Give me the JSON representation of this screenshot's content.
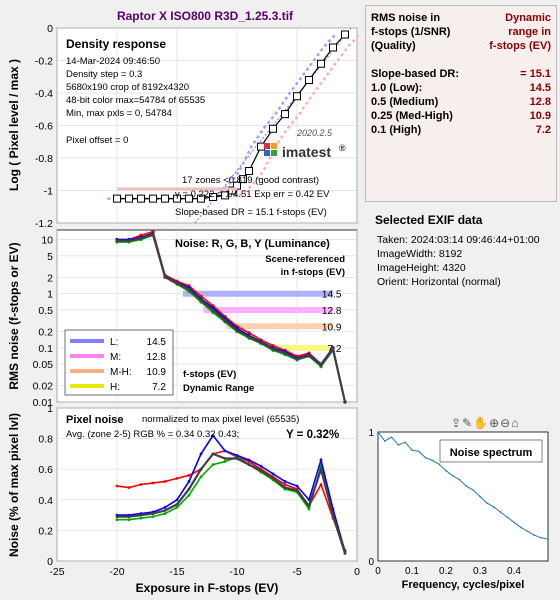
{
  "window_title": "Raptor X ISO800 R3D_1.25.3.tif",
  "density": {
    "title": "Density response",
    "info_lines": [
      "14-Mar-2024 09:46:50",
      "Density step = 0.3",
      "5680x190 crop of 8192x4320",
      "48-bit color  max=54784 of 65535",
      "Min, max pxls = 0, 54784"
    ],
    "pixel_offset": "Pixel offset = 0",
    "version": "2020.2.5",
    "logo_text": "imatest",
    "notes": [
      "17 zones <0.819 (good contrast)",
      "γ = 0.222 = 1/4.51  Exp err = 0.42 EV",
      "Slope-based DR = 15.1 f-stops (EV)"
    ],
    "ylabel": "Log ( Pixel level / max )"
  },
  "noise": {
    "title": "Noise: R, G, B, Y (Luminance)",
    "note": [
      "Scene-referenced",
      "in f-stops (EV)"
    ],
    "ylabel": "RMS noise (f-stops or EV)",
    "dr_title": [
      "f-stops (EV)",
      "Dynamic Range"
    ],
    "legend": [
      {
        "label": "L:",
        "value": "14.5",
        "color": "#8080ff"
      },
      {
        "label": "M:",
        "value": "12.8",
        "color": "#ff80ff"
      },
      {
        "label": "M-H:",
        "value": "10.9",
        "color": "#ffb080"
      },
      {
        "label": "H:",
        "value": "7.2",
        "color": "#e8e800"
      }
    ],
    "band_labels": [
      "14.5",
      "12.8",
      "10.9",
      "7.2"
    ]
  },
  "pixel_noise": {
    "title": "Pixel noise",
    "subtitle": "normalized to max pixel level (65535)",
    "avg": "Avg. (zone 2-5) RGB % = 0.34  0.32  0.43;",
    "y_value": "Y = 0.32%",
    "ylabel": "Noise (% of max pixel lvl)",
    "xlabel": "Exposure in F-stops (EV)"
  },
  "table": {
    "header_left": [
      "RMS noise in",
      "f-stops (1/SNR)",
      "(Quality)"
    ],
    "header_right": [
      "Dynamic",
      "range in",
      "f-stops (EV)"
    ],
    "slope_label": "Slope-based DR:",
    "slope_value": "= 15.1",
    "rows": [
      {
        "label": "1.0   (Low):",
        "value": "14.5"
      },
      {
        "label": "0.5   (Medium)",
        "value": "12.8"
      },
      {
        "label": "0.25 (Med-High)",
        "value": "10.9"
      },
      {
        "label": "0.1   (High)",
        "value": "7.2"
      }
    ]
  },
  "exif": {
    "title": "Selected EXIF data",
    "lines": [
      "Taken: 2024:03:14 09:46:44+01:00",
      "ImageWidth:  8192",
      "ImageHeight:  4320",
      "Orient: Horizontal (normal)"
    ]
  },
  "spectrum": {
    "title": "Noise spectrum",
    "xlabel": "Frequency, cycles/pixel"
  },
  "toolbar_icons": [
    "export-icon",
    "brush-icon",
    "pan-hand-icon",
    "zoom-in-icon",
    "zoom-out-icon",
    "home-icon"
  ],
  "chart_data": [
    {
      "type": "line",
      "title": "Density response",
      "xlabel": "",
      "ylabel": "Log ( Pixel level / max )",
      "xlim": [
        -25,
        0
      ],
      "ylim": [
        -1.2,
        0
      ],
      "x_ticks": [
        -25,
        -20,
        -15,
        -10,
        -5,
        0
      ],
      "y_ticks": [
        -1.2,
        -1,
        -0.8,
        -0.6,
        -0.4,
        -0.2,
        0
      ],
      "grid": true,
      "series": [
        {
          "x": [
            -20,
            -19,
            -18,
            -17,
            -16,
            -15,
            -14,
            -13,
            -12,
            -11,
            -10.4,
            -10,
            -9.5,
            -9,
            -8,
            -7,
            -6,
            -5,
            -4,
            -3,
            -2,
            -1
          ],
          "y": [
            -1.05,
            -1.05,
            -1.05,
            -1.05,
            -1.05,
            -1.05,
            -1.05,
            -1.05,
            -1.04,
            -1.03,
            -1.0,
            -0.97,
            -0.93,
            -0.88,
            -0.73,
            -0.62,
            -0.53,
            -0.42,
            -0.32,
            -0.22,
            -0.12,
            -0.04
          ],
          "color": "#000000"
        }
      ]
    },
    {
      "type": "line",
      "title": "Noise: R, G, B, Y (Luminance)",
      "ylabel": "RMS noise (f-stops or EV)",
      "xlim": [
        -25,
        0
      ],
      "ylim": [
        0.01,
        15
      ],
      "yscale": "log",
      "y_ticks": [
        0.01,
        0.02,
        0.05,
        0.1,
        0.2,
        0.5,
        1,
        2,
        5,
        10
      ],
      "grid": true,
      "series": [
        {
          "x": [
            -20,
            -19,
            -18,
            -17,
            -16,
            -15,
            -14,
            -13,
            -12,
            -11,
            -10,
            -9,
            -8,
            -7,
            -6,
            -5,
            -4,
            -3,
            -2,
            -1
          ],
          "y": [
            10,
            10,
            12,
            14,
            2.2,
            1.7,
            1.4,
            0.9,
            0.6,
            0.38,
            0.25,
            0.19,
            0.14,
            0.11,
            0.09,
            0.07,
            0.08,
            0.05,
            0.1,
            0.01
          ],
          "color": "#ff0000"
        },
        {
          "x": [
            -20,
            -19,
            -18,
            -17,
            -16,
            -15,
            -14,
            -13,
            -12,
            -11,
            -10,
            -9,
            -8,
            -7,
            -6,
            -5,
            -4,
            -3,
            -2,
            -1
          ],
          "y": [
            9,
            9,
            10,
            12,
            2.0,
            1.5,
            1.1,
            0.7,
            0.45,
            0.3,
            0.2,
            0.15,
            0.12,
            0.09,
            0.075,
            0.06,
            0.07,
            0.045,
            0.09,
            0.01
          ],
          "color": "#00aa00"
        },
        {
          "x": [
            -20,
            -19,
            -18,
            -17,
            -16,
            -15,
            -14,
            -13,
            -12,
            -11,
            -10,
            -9,
            -8,
            -7,
            -6,
            -5,
            -4,
            -3,
            -2,
            -1
          ],
          "y": [
            10,
            10,
            11,
            13,
            2.1,
            1.6,
            1.3,
            0.8,
            0.55,
            0.35,
            0.23,
            0.17,
            0.13,
            0.1,
            0.085,
            0.065,
            0.075,
            0.05,
            0.1,
            0.01
          ],
          "color": "#0000ff"
        },
        {
          "x": [
            -20,
            -19,
            -18,
            -17,
            -16,
            -15,
            -14,
            -13,
            -12,
            -11,
            -10,
            -9,
            -8,
            -7,
            -6,
            -5,
            -4,
            -3,
            -2,
            -1
          ],
          "y": [
            9.5,
            9.5,
            10.5,
            12.5,
            2.05,
            1.55,
            1.2,
            0.75,
            0.5,
            0.32,
            0.21,
            0.16,
            0.125,
            0.095,
            0.08,
            0.062,
            0.072,
            0.048,
            0.095,
            0.01
          ],
          "color": "#404040"
        }
      ]
    },
    {
      "type": "line",
      "title": "Pixel noise",
      "xlabel": "Exposure in F-stops (EV)",
      "ylabel": "Noise (% of max pixel lvl)",
      "xlim": [
        -25,
        0
      ],
      "ylim": [
        0,
        1
      ],
      "x_ticks": [
        -25,
        -20,
        -15,
        -10,
        -5,
        0
      ],
      "y_ticks": [
        0,
        0.2,
        0.4,
        0.6,
        0.8,
        1
      ],
      "grid": true,
      "series": [
        {
          "x": [
            -20,
            -19,
            -18,
            -17,
            -16,
            -15,
            -14,
            -13,
            -12,
            -11,
            -10,
            -9,
            -8,
            -7,
            -6,
            -5,
            -4,
            -3,
            -2,
            -1
          ],
          "y": [
            0.49,
            0.48,
            0.5,
            0.51,
            0.52,
            0.54,
            0.56,
            0.6,
            0.7,
            0.72,
            0.68,
            0.65,
            0.6,
            0.55,
            0.5,
            0.47,
            0.36,
            0.5,
            0.28,
            0.07
          ],
          "color": "#ff0000"
        },
        {
          "x": [
            -20,
            -19,
            -18,
            -17,
            -16,
            -15,
            -14,
            -13,
            -12,
            -11,
            -10,
            -9,
            -8,
            -7,
            -6,
            -5,
            -4,
            -3,
            -2,
            -1
          ],
          "y": [
            0.27,
            0.27,
            0.28,
            0.29,
            0.31,
            0.35,
            0.43,
            0.55,
            0.63,
            0.65,
            0.68,
            0.63,
            0.58,
            0.53,
            0.47,
            0.45,
            0.34,
            0.62,
            0.29,
            0.05
          ],
          "color": "#00aa00"
        },
        {
          "x": [
            -20,
            -19,
            -18,
            -17,
            -16,
            -15,
            -14,
            -13,
            -12,
            -11,
            -10,
            -9,
            -8,
            -7,
            -6,
            -5,
            -4,
            -3,
            -2,
            -1
          ],
          "y": [
            0.3,
            0.3,
            0.31,
            0.32,
            0.35,
            0.4,
            0.52,
            0.7,
            0.82,
            0.72,
            0.69,
            0.66,
            0.62,
            0.57,
            0.52,
            0.49,
            0.4,
            0.66,
            0.34,
            0.06
          ],
          "color": "#0000ff"
        },
        {
          "x": [
            -20,
            -19,
            -18,
            -17,
            -16,
            -15,
            -14,
            -13,
            -12,
            -11,
            -10,
            -9,
            -8,
            -7,
            -6,
            -5,
            -4,
            -3,
            -2,
            -1
          ],
          "y": [
            0.29,
            0.29,
            0.3,
            0.31,
            0.33,
            0.37,
            0.47,
            0.6,
            0.7,
            0.67,
            0.67,
            0.63,
            0.59,
            0.54,
            0.48,
            0.46,
            0.36,
            0.6,
            0.3,
            0.05
          ],
          "color": "#404040"
        }
      ]
    },
    {
      "type": "line",
      "title": "Noise spectrum",
      "xlabel": "Frequency, cycles/pixel",
      "xlim": [
        0,
        0.5
      ],
      "ylim": [
        0,
        1
      ],
      "x_ticks": [
        0,
        0.1,
        0.2,
        0.3,
        0.4
      ],
      "y_ticks": [
        0,
        1
      ],
      "grid": false,
      "series": [
        {
          "x": [
            0,
            0.02,
            0.04,
            0.06,
            0.08,
            0.1,
            0.12,
            0.14,
            0.16,
            0.18,
            0.2,
            0.22,
            0.24,
            0.26,
            0.28,
            0.3,
            0.32,
            0.34,
            0.36,
            0.38,
            0.4,
            0.42,
            0.44,
            0.46,
            0.48,
            0.5
          ],
          "y": [
            1.0,
            0.93,
            0.96,
            0.9,
            0.92,
            0.86,
            0.85,
            0.8,
            0.78,
            0.75,
            0.7,
            0.66,
            0.63,
            0.58,
            0.55,
            0.5,
            0.45,
            0.42,
            0.38,
            0.34,
            0.3,
            0.26,
            0.23,
            0.2,
            0.18,
            0.17
          ],
          "color": "#1f77b4"
        }
      ]
    }
  ]
}
